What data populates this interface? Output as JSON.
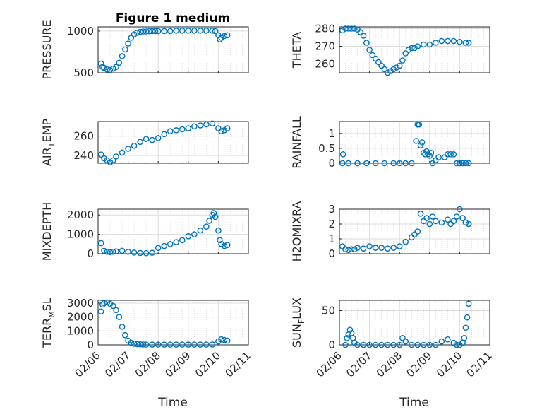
{
  "figure": {
    "title": "Figure 1 medium",
    "x_tick_labels": [
      "02/06",
      "02/07",
      "02/08",
      "02/09",
      "02/10",
      "02/11"
    ],
    "x_label": "Time"
  },
  "chart_data": [
    {
      "type": "scatter",
      "ylabel": "PRESSURE",
      "ylim": [
        500,
        1050
      ],
      "yticks": [
        500,
        1000
      ],
      "grid": true,
      "x": [
        0.1,
        0.15,
        0.2,
        0.3,
        0.4,
        0.5,
        0.6,
        0.7,
        0.8,
        0.9,
        1.0,
        1.1,
        1.2,
        1.3,
        1.4,
        1.5,
        1.6,
        1.7,
        1.8,
        1.9,
        2.0,
        2.2,
        2.4,
        2.6,
        2.8,
        3.0,
        3.2,
        3.4,
        3.6,
        3.8,
        3.9,
        4.0,
        4.05,
        4.1,
        4.2,
        4.3
      ],
      "values": [
        610,
        570,
        560,
        540,
        535,
        550,
        570,
        620,
        700,
        780,
        850,
        920,
        960,
        980,
        990,
        995,
        995,
        998,
        1000,
        1000,
        1000,
        1000,
        1000,
        1005,
        1005,
        1005,
        1005,
        1005,
        1005,
        1005,
        1000,
        950,
        900,
        920,
        940,
        950
      ]
    },
    {
      "type": "scatter",
      "ylabel": "THETA",
      "ylim": [
        255,
        281
      ],
      "yticks": [
        260,
        270,
        280
      ],
      "grid": true,
      "x": [
        0.1,
        0.2,
        0.3,
        0.4,
        0.5,
        0.6,
        0.7,
        0.8,
        0.9,
        1.0,
        1.1,
        1.2,
        1.3,
        1.4,
        1.5,
        1.6,
        1.7,
        1.8,
        1.9,
        2.0,
        2.1,
        2.2,
        2.3,
        2.4,
        2.5,
        2.6,
        2.8,
        3.0,
        3.2,
        3.4,
        3.6,
        3.8,
        4.0,
        4.2,
        4.3
      ],
      "values": [
        279,
        280,
        280,
        280,
        280,
        279.5,
        278,
        276,
        272,
        268,
        265,
        263,
        261,
        259,
        257,
        255,
        256,
        257,
        258,
        259,
        262,
        266,
        268,
        269,
        269,
        270,
        271,
        271,
        272,
        273,
        273,
        273,
        272.5,
        272,
        272
      ]
    },
    {
      "type": "scatter",
      "ylabel": "AIR_TEMP",
      "ylim": [
        232,
        275
      ],
      "yticks": [
        240,
        260
      ],
      "grid": true,
      "x": [
        0.1,
        0.2,
        0.3,
        0.4,
        0.5,
        0.6,
        0.8,
        1.0,
        1.2,
        1.4,
        1.6,
        1.8,
        2.0,
        2.2,
        2.4,
        2.6,
        2.8,
        3.0,
        3.2,
        3.4,
        3.6,
        3.8,
        4.0,
        4.1,
        4.2,
        4.3
      ],
      "values": [
        241,
        237,
        235,
        233,
        235,
        239,
        243,
        247,
        250,
        254,
        257,
        256,
        258,
        262,
        265,
        266,
        267,
        268,
        270,
        271,
        272,
        273,
        268,
        265,
        266,
        268
      ]
    },
    {
      "type": "scatter",
      "ylabel": "RAINFALL",
      "ylim": [
        0,
        1.4
      ],
      "yticks": [
        0,
        0.5,
        1
      ],
      "grid": true,
      "x": [
        0.1,
        0.12,
        0.3,
        0.6,
        0.9,
        1.2,
        1.5,
        1.8,
        2.0,
        2.2,
        2.4,
        2.55,
        2.6,
        2.65,
        2.7,
        2.75,
        2.8,
        2.85,
        2.9,
        2.95,
        3.0,
        3.05,
        3.1,
        3.2,
        3.3,
        3.5,
        3.6,
        3.7,
        3.8,
        3.9,
        4.0,
        4.1,
        4.2,
        4.3
      ],
      "values": [
        0,
        0.3,
        0,
        0,
        0,
        0,
        0,
        0,
        0,
        0,
        0,
        0.75,
        1.3,
        1.3,
        0.6,
        0.7,
        0.35,
        0.3,
        0.4,
        0.3,
        0.25,
        0.35,
        0,
        0.1,
        0.2,
        0.2,
        0.3,
        0.3,
        0.3,
        0,
        0,
        0,
        0,
        0
      ]
    },
    {
      "type": "scatter",
      "ylabel": "MIXDEPTH",
      "ylim": [
        0,
        2300
      ],
      "yticks": [
        0,
        1000,
        2000
      ],
      "grid": true,
      "x": [
        0.1,
        0.2,
        0.3,
        0.4,
        0.5,
        0.6,
        0.8,
        1.0,
        1.2,
        1.4,
        1.6,
        1.8,
        2.0,
        2.2,
        2.4,
        2.6,
        2.8,
        3.0,
        3.2,
        3.4,
        3.6,
        3.7,
        3.8,
        3.85,
        3.9,
        4.0,
        4.05,
        4.1,
        4.2,
        4.3
      ],
      "values": [
        550,
        150,
        100,
        80,
        100,
        120,
        150,
        100,
        60,
        40,
        30,
        50,
        300,
        400,
        500,
        600,
        700,
        900,
        1000,
        1200,
        1400,
        1700,
        2000,
        2100,
        1900,
        1200,
        700,
        500,
        400,
        450
      ]
    },
    {
      "type": "scatter",
      "ylabel": "H2OMIXRA",
      "ylim": [
        0,
        3
      ],
      "yticks": [
        0,
        1,
        2,
        3
      ],
      "grid": true,
      "x": [
        0.1,
        0.2,
        0.3,
        0.4,
        0.5,
        0.6,
        0.8,
        1.0,
        1.2,
        1.4,
        1.6,
        1.8,
        2.0,
        2.2,
        2.4,
        2.5,
        2.6,
        2.7,
        2.8,
        2.9,
        3.0,
        3.1,
        3.2,
        3.4,
        3.6,
        3.7,
        3.8,
        3.9,
        4.0,
        4.1,
        4.2,
        4.3
      ],
      "values": [
        0.5,
        0.3,
        0.25,
        0.3,
        0.3,
        0.4,
        0.35,
        0.5,
        0.4,
        0.4,
        0.35,
        0.4,
        0.5,
        0.8,
        1.1,
        1.3,
        1.5,
        2.7,
        2.2,
        2.4,
        2.0,
        2.5,
        2.2,
        2.1,
        2.3,
        2.0,
        2.2,
        2.5,
        3.0,
        2.4,
        2.1,
        2.0
      ]
    },
    {
      "type": "scatter",
      "ylabel": "TERR_MSL",
      "ylim": [
        0,
        3200
      ],
      "yticks": [
        0,
        1000,
        2000,
        3000
      ],
      "grid": true,
      "x": [
        0.1,
        0.15,
        0.2,
        0.3,
        0.4,
        0.5,
        0.6,
        0.7,
        0.8,
        0.9,
        1.0,
        1.1,
        1.2,
        1.3,
        1.4,
        1.5,
        1.6,
        1.8,
        2.0,
        2.2,
        2.4,
        2.6,
        2.8,
        3.0,
        3.2,
        3.4,
        3.6,
        3.8,
        4.0,
        4.1,
        4.2,
        4.3
      ],
      "values": [
        2400,
        2900,
        3000,
        3050,
        2950,
        2800,
        2500,
        2000,
        1300,
        700,
        300,
        150,
        80,
        50,
        40,
        30,
        20,
        20,
        20,
        20,
        20,
        20,
        20,
        20,
        20,
        20,
        20,
        30,
        250,
        400,
        350,
        300
      ]
    },
    {
      "type": "scatter",
      "ylabel": "SUN_FLUX",
      "ylim": [
        0,
        65
      ],
      "yticks": [
        0,
        50
      ],
      "grid": true,
      "x": [
        0.2,
        0.25,
        0.3,
        0.35,
        0.4,
        0.45,
        0.5,
        0.6,
        0.8,
        1.0,
        1.2,
        1.4,
        1.6,
        1.8,
        2.0,
        2.1,
        2.2,
        2.4,
        2.6,
        2.8,
        3.0,
        3.2,
        3.4,
        3.6,
        3.8,
        3.9,
        4.0,
        4.1,
        4.15,
        4.2,
        4.25,
        4.3
      ],
      "values": [
        0,
        10,
        15,
        22,
        17,
        10,
        3,
        0,
        0,
        0,
        0,
        0,
        0,
        0,
        0,
        10,
        5,
        0,
        0,
        0,
        0,
        0,
        5,
        8,
        3,
        0,
        0,
        3,
        10,
        25,
        40,
        60
      ]
    }
  ]
}
